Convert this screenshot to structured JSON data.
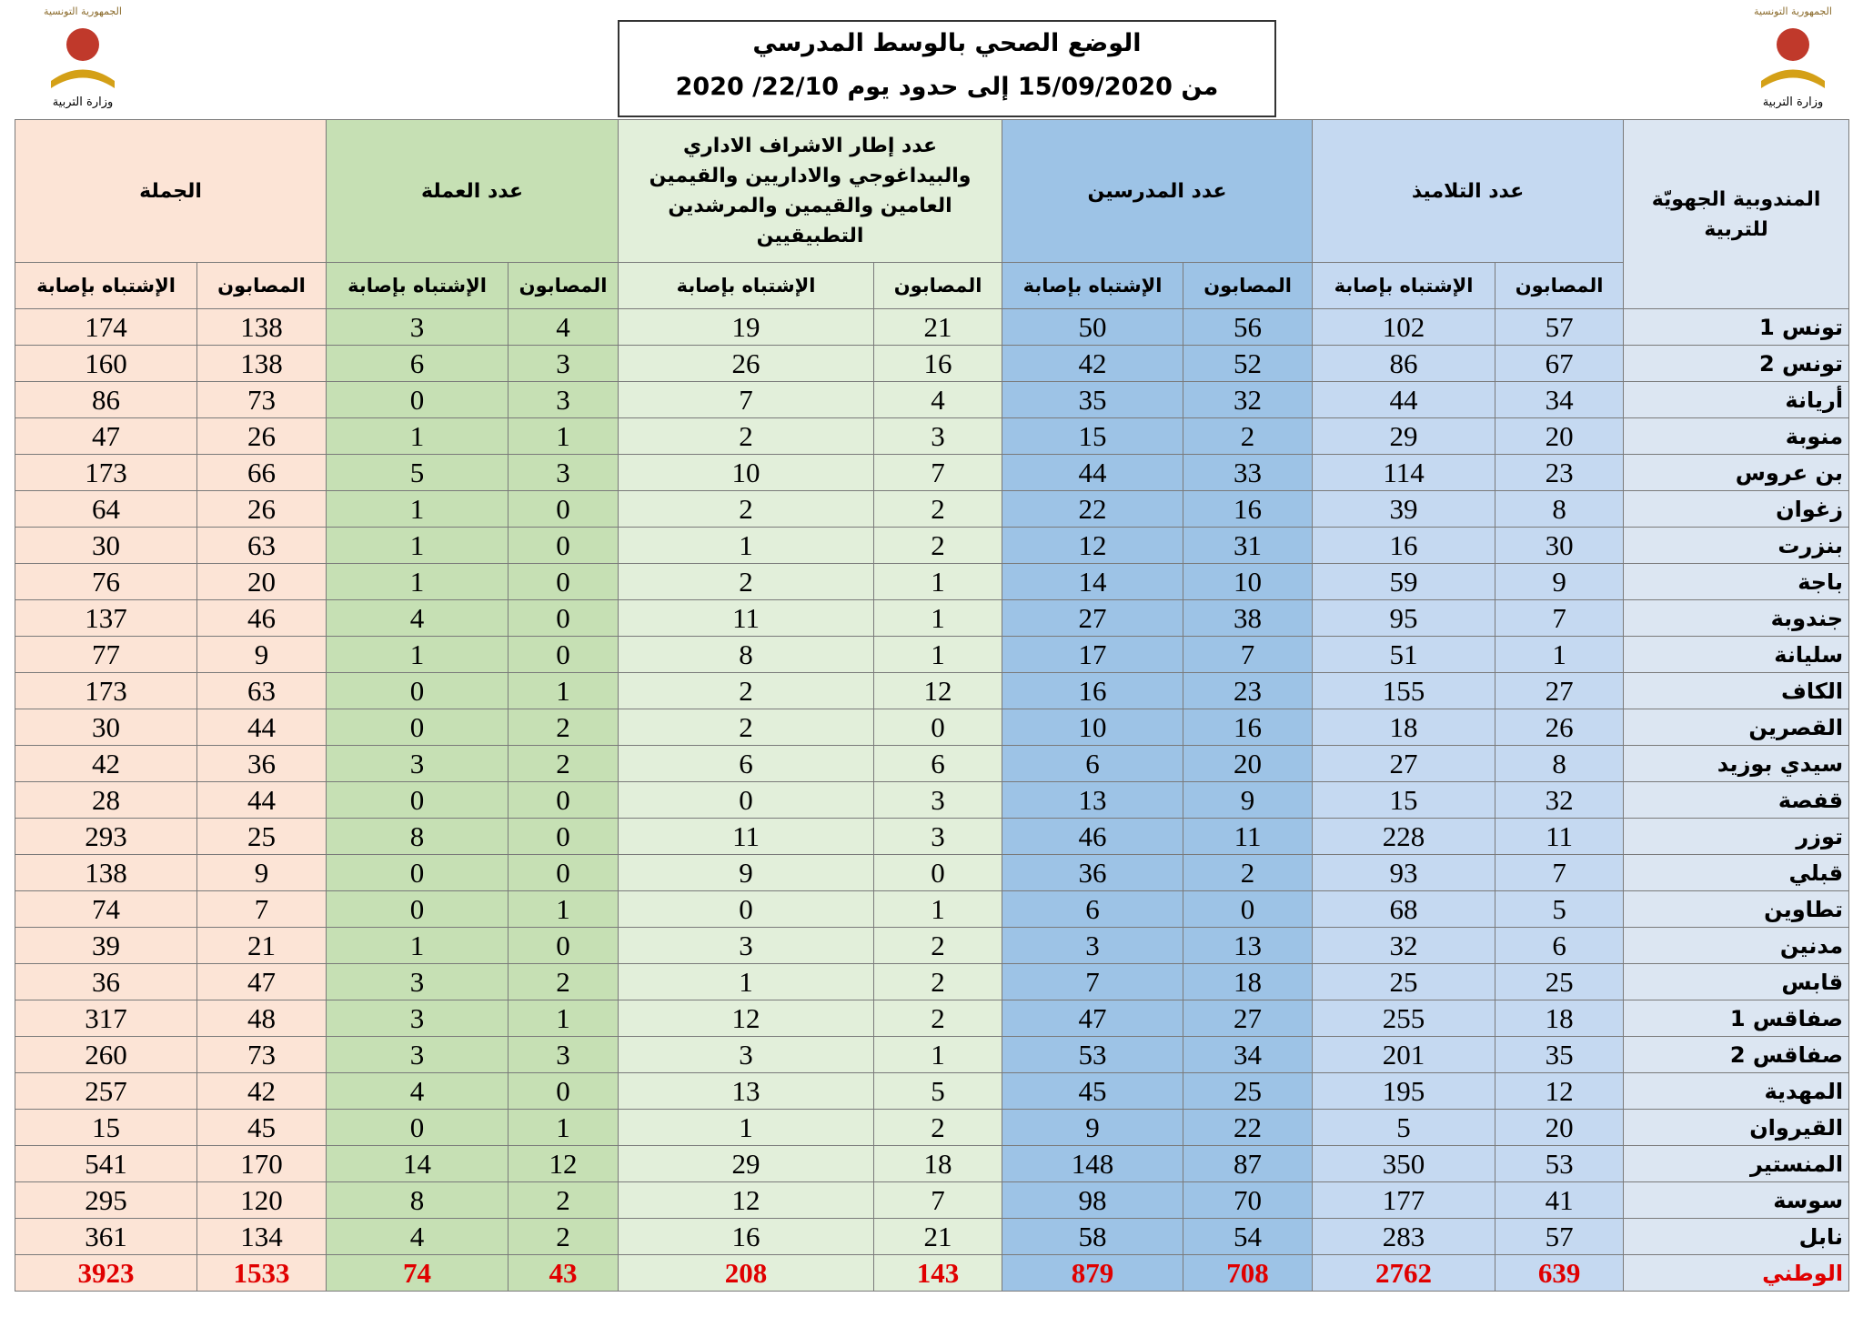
{
  "header": {
    "title": "الوضع الصحي بالوسط المدرسي",
    "subtitle": "من 15/09/2020 إلى حدود يوم 22/10/ 2020",
    "logo_top": "الجمهورية التونسية",
    "logo_caption": "وزارة التربية"
  },
  "table": {
    "region_header": "المندوبية الجهويّة للتربية",
    "groups": [
      "عدد التلاميذ",
      "عدد المدرسين",
      "عدد إطار الاشراف الاداري والبيداغوجي والاداريين والقيمين العامين والقيمين والمرشدين التطبيقيين",
      "عدد العملة",
      "الجملة"
    ],
    "sub_labels": [
      "المصابون",
      "الإشتباه بإصابة"
    ],
    "rows": [
      [
        "تونس 1",
        57,
        102,
        56,
        50,
        21,
        19,
        4,
        3,
        138,
        174
      ],
      [
        "تونس 2",
        67,
        86,
        52,
        42,
        16,
        26,
        3,
        6,
        138,
        160
      ],
      [
        "أريانة",
        34,
        44,
        32,
        35,
        4,
        7,
        3,
        0,
        73,
        86
      ],
      [
        "منوبة",
        20,
        29,
        2,
        15,
        3,
        2,
        1,
        1,
        26,
        47
      ],
      [
        "بن عروس",
        23,
        114,
        33,
        44,
        7,
        10,
        3,
        5,
        66,
        173
      ],
      [
        "زغوان",
        8,
        39,
        16,
        22,
        2,
        2,
        0,
        1,
        26,
        64
      ],
      [
        "بنزرت",
        30,
        16,
        31,
        12,
        2,
        1,
        0,
        1,
        63,
        30
      ],
      [
        "باجة",
        9,
        59,
        10,
        14,
        1,
        2,
        0,
        1,
        20,
        76
      ],
      [
        "جندوبة",
        7,
        95,
        38,
        27,
        1,
        11,
        0,
        4,
        46,
        137
      ],
      [
        "سليانة",
        1,
        51,
        7,
        17,
        1,
        8,
        0,
        1,
        9,
        77
      ],
      [
        "الكاف",
        27,
        155,
        23,
        16,
        12,
        2,
        1,
        0,
        63,
        173
      ],
      [
        "القصرين",
        26,
        18,
        16,
        10,
        0,
        2,
        2,
        0,
        44,
        30
      ],
      [
        "سيدي بوزيد",
        8,
        27,
        20,
        6,
        6,
        6,
        2,
        3,
        36,
        42
      ],
      [
        "قفصة",
        32,
        15,
        9,
        13,
        3,
        0,
        0,
        0,
        44,
        28
      ],
      [
        "توزر",
        11,
        228,
        11,
        46,
        3,
        11,
        0,
        8,
        25,
        293
      ],
      [
        "قبلي",
        7,
        93,
        2,
        36,
        0,
        9,
        0,
        0,
        9,
        138
      ],
      [
        "تطاوين",
        5,
        68,
        0,
        6,
        1,
        0,
        1,
        0,
        7,
        74
      ],
      [
        "مدنين",
        6,
        32,
        13,
        3,
        2,
        3,
        0,
        1,
        21,
        39
      ],
      [
        "قابس",
        25,
        25,
        18,
        7,
        2,
        1,
        2,
        3,
        47,
        36
      ],
      [
        "صفاقس 1",
        18,
        255,
        27,
        47,
        2,
        12,
        1,
        3,
        48,
        317
      ],
      [
        "صفاقس 2",
        35,
        201,
        34,
        53,
        1,
        3,
        3,
        3,
        73,
        260
      ],
      [
        "المهدية",
        12,
        195,
        25,
        45,
        5,
        13,
        0,
        4,
        42,
        257
      ],
      [
        "القيروان",
        20,
        5,
        22,
        9,
        2,
        1,
        1,
        0,
        45,
        15
      ],
      [
        "المنستير",
        53,
        350,
        87,
        148,
        18,
        29,
        12,
        14,
        170,
        541
      ],
      [
        "سوسة",
        41,
        177,
        70,
        98,
        7,
        12,
        2,
        8,
        120,
        295
      ],
      [
        "نابل",
        57,
        283,
        54,
        58,
        21,
        16,
        2,
        4,
        134,
        361
      ]
    ],
    "total": [
      "الوطني",
      639,
      2762,
      708,
      879,
      143,
      208,
      43,
      74,
      1533,
      3923
    ]
  }
}
